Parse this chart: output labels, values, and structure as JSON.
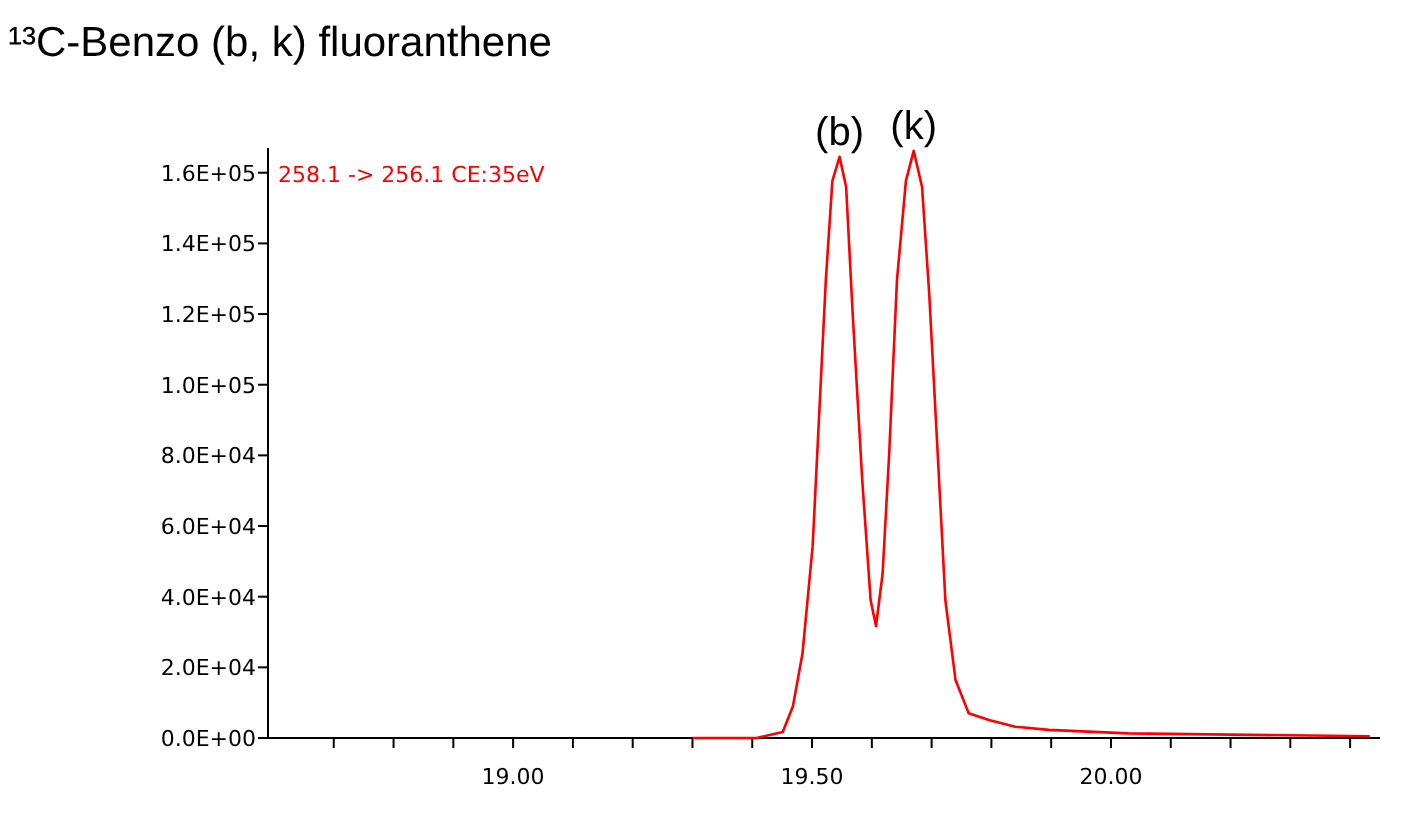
{
  "chart_data": {
    "type": "line",
    "title": "¹³C-Benzo (b, k) fluoranthene",
    "annotations": [
      "258.1 -> 256.1 CE:35eV",
      {
        "text": "(b)",
        "x": 19.546,
        "y": 164500
      },
      {
        "text": "(k)",
        "x": 19.67,
        "y": 166200
      }
    ],
    "series": [
      {
        "color": "#ff0000",
        "x": [
          19.3,
          19.407,
          19.451,
          19.468,
          19.484,
          19.501,
          19.512,
          19.523,
          19.534,
          19.546,
          19.557,
          19.568,
          19.584,
          19.598,
          19.607,
          19.618,
          19.629,
          19.642,
          19.657,
          19.67,
          19.684,
          19.696,
          19.709,
          19.723,
          19.74,
          19.762,
          19.796,
          19.84,
          19.896,
          20.029,
          20.433
        ],
        "values": [
          0,
          0,
          1700,
          9000,
          23900,
          54300,
          91800,
          129500,
          157700,
          164500,
          156000,
          120000,
          72900,
          39000,
          31700,
          46500,
          80400,
          129500,
          157700,
          166200,
          156000,
          125700,
          84200,
          39000,
          16400,
          7000,
          5100,
          3200,
          2300,
          1300,
          500
        ]
      }
    ],
    "xlim": [
      18.59,
      20.45
    ],
    "xticks": [
      {
        "value": 18.7,
        "label": null
      },
      {
        "value": 18.8,
        "label": null
      },
      {
        "value": 18.9,
        "label": null
      },
      {
        "value": 19,
        "label": "19.00"
      },
      {
        "value": 19.1,
        "label": null
      },
      {
        "value": 19.2,
        "label": null
      },
      {
        "value": 19.3,
        "label": null
      },
      {
        "value": 19.4,
        "label": null
      },
      {
        "value": 19.5,
        "label": "19.50"
      },
      {
        "value": 19.6,
        "label": null
      },
      {
        "value": 19.7,
        "label": null
      },
      {
        "value": 19.8,
        "label": null
      },
      {
        "value": 19.9,
        "label": null
      },
      {
        "value": 20,
        "label": "20.00"
      },
      {
        "value": 20.1,
        "label": null
      },
      {
        "value": 20.2,
        "label": null
      },
      {
        "value": 20.3,
        "label": null
      },
      {
        "value": 20.4,
        "label": null
      }
    ],
    "ylim": [
      0,
      167000
    ],
    "yticks": [
      {
        "value": 0,
        "label": "0.0E+00"
      },
      {
        "value": 20000,
        "label": "2.0E+04"
      },
      {
        "value": 40000,
        "label": "4.0E+04"
      },
      {
        "value": 60000,
        "label": "6.0E+04"
      },
      {
        "value": 80000,
        "label": "8.0E+04"
      },
      {
        "value": 100000,
        "label": "1.0E+05"
      },
      {
        "value": 120000,
        "label": "1.2E+05"
      },
      {
        "value": 140000,
        "label": "1.4E+05"
      },
      {
        "value": 160000,
        "label": "1.6E+05"
      }
    ],
    "grid": false,
    "marker": "none",
    "line_style": "solid"
  }
}
